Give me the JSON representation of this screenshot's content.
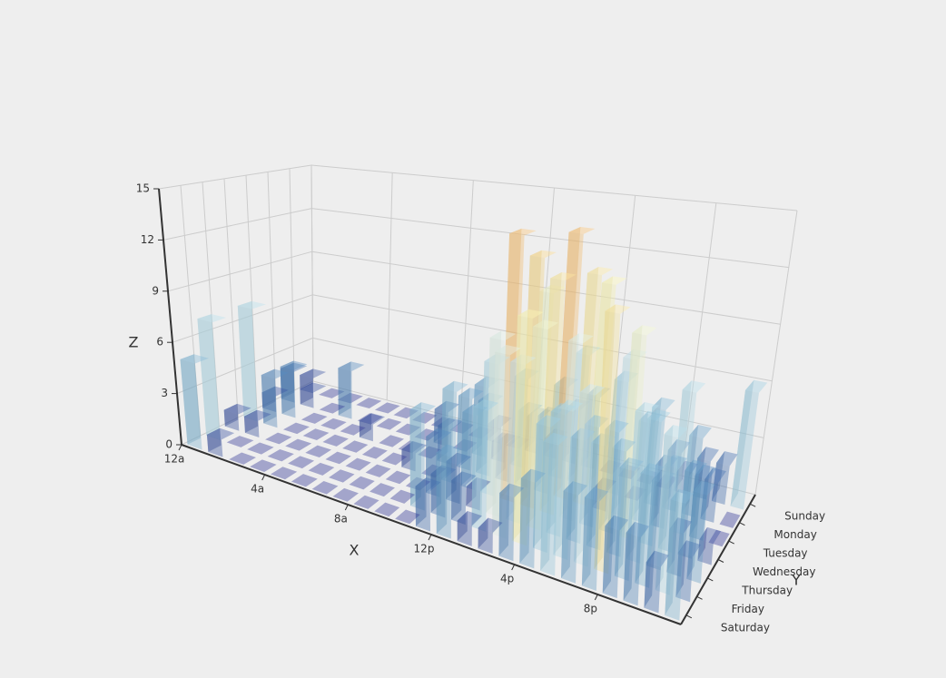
{
  "chart_data": {
    "type": "bar3d",
    "x_name": "X",
    "y_name": "Y",
    "z_name": "Z",
    "x": [
      "12a",
      null,
      null,
      null,
      "4a",
      null,
      null,
      null,
      "8a",
      null,
      null,
      null,
      "12p",
      null,
      null,
      null,
      "4p",
      null,
      null,
      null,
      "8p",
      null,
      null,
      null
    ],
    "y": [
      "Saturday",
      "Friday",
      "Thursday",
      "Wednesday",
      "Tuesday",
      "Monday",
      "Sunday"
    ],
    "values": [
      [
        5,
        1,
        0,
        0,
        0,
        0,
        0,
        0,
        0,
        0,
        0,
        2,
        4,
        1,
        1,
        3,
        4,
        6,
        4,
        4,
        3,
        3,
        2,
        5
      ],
      [
        7,
        0,
        0,
        0,
        0,
        0,
        0,
        0,
        0,
        0,
        5,
        2,
        2,
        6,
        9,
        11,
        6,
        7,
        8,
        12,
        5,
        5,
        7,
        2
      ],
      [
        1,
        1,
        0,
        0,
        0,
        0,
        0,
        0,
        0,
        0,
        3,
        2,
        1,
        9,
        8,
        10,
        6,
        5,
        5,
        5,
        7,
        4,
        2,
        4
      ],
      [
        7,
        3,
        0,
        0,
        0,
        0,
        0,
        0,
        1,
        0,
        5,
        4,
        7,
        14,
        13,
        12,
        9,
        5,
        5,
        10,
        6,
        4,
        4,
        1
      ],
      [
        1,
        3,
        0,
        0,
        0,
        1,
        0,
        0,
        0,
        2,
        4,
        4,
        2,
        4,
        4,
        14,
        12,
        1,
        8,
        5,
        3,
        7,
        3,
        0
      ],
      [
        2,
        1,
        0,
        3,
        0,
        0,
        0,
        0,
        2,
        0,
        4,
        1,
        5,
        10,
        5,
        7,
        11,
        6,
        0,
        5,
        3,
        4,
        2,
        0
      ],
      [
        1,
        0,
        0,
        0,
        0,
        0,
        0,
        0,
        0,
        0,
        1,
        0,
        2,
        1,
        3,
        4,
        0,
        0,
        0,
        0,
        1,
        2,
        2,
        6
      ]
    ],
    "zlim": [
      0,
      15
    ],
    "zticks": [
      0,
      3,
      6,
      9,
      12,
      15
    ],
    "grid": true,
    "colors": [
      "#313695",
      "#4575b4",
      "#74add1",
      "#abd9e9",
      "#e0f3f8",
      "#ffffbf",
      "#fee090",
      "#fdae61"
    ],
    "opacity": 0.4
  }
}
